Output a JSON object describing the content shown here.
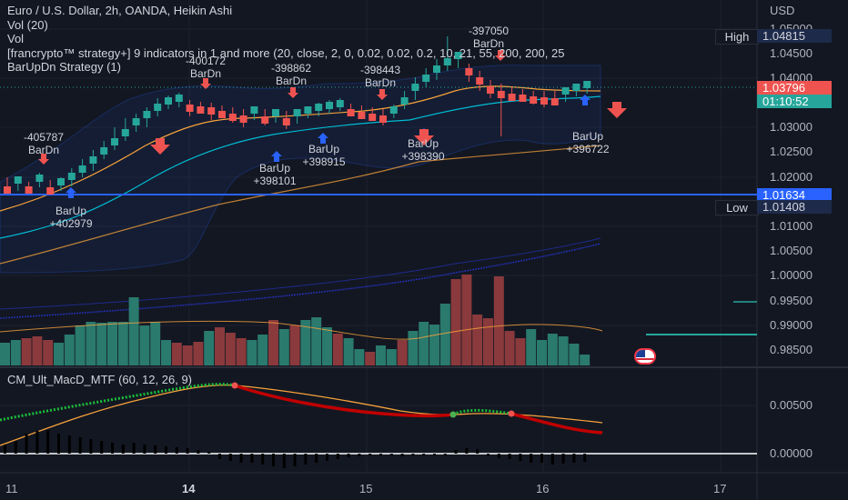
{
  "legend": {
    "title": "Euro / U.S. Dollar, 2h, OANDA, Heikin Ashi",
    "vol1": "Vol (20)",
    "vol2": "Vol",
    "strategy": "[francrypto™ strategy+] 9 indicators in 1 and more (20, close, 2, 0, 0.02, 0.02, 0.2, 10, 21, 55, 200, 200, 25",
    "barupdn": "BarUpDn Strategy (1)"
  },
  "macd_title": "CM_Ult_MacD_MTF (60, 12, 26, 9)",
  "price_axis": {
    "currency": "USD",
    "ticks": [
      "1.05000",
      "1.04500",
      "1.04000",
      "1.03000",
      "1.02500",
      "1.02000",
      "1.01000",
      "1.00500",
      "1.00000",
      "0.99500",
      "0.99000",
      "0.98500"
    ]
  },
  "macd_axis": {
    "ticks": [
      "0.00500",
      "0.00000"
    ]
  },
  "tags": {
    "high_label": "High",
    "high_value": "1.04815",
    "last_value": "1.03796",
    "countdown": "01:10:52",
    "line_value": "1.01634",
    "low_label": "Low",
    "low_value": "1.01408"
  },
  "time_axis": [
    "11",
    "14",
    "15",
    "16",
    "17"
  ],
  "annotations": [
    {
      "text": "-405787\nBarDn"
    },
    {
      "text": "-400172\nBarDn"
    },
    {
      "text": "-398862\nBarDn"
    },
    {
      "text": "-398443\nBarDn"
    },
    {
      "text": "-397050\nBarDn"
    },
    {
      "text": "BarUp\n+402979"
    },
    {
      "text": "BarUp\n+398101"
    },
    {
      "text": "BarUp\n+398915"
    },
    {
      "text": "BarUp\n+398390"
    },
    {
      "text": "BarUp\n+396722"
    }
  ],
  "colors": {
    "background": "#131722",
    "bull": "#26a69a",
    "bear": "#ef5350",
    "vol_bull": "#2a7a6e",
    "vol_bear": "#8a3a3c",
    "accent_blue": "#2962ff",
    "ema_orange": "#f7a23b",
    "cyan": "#00bcd4",
    "macd_green": "#4caf50",
    "macd_red": "#d00000"
  },
  "icons": {
    "flag": "us-flag-icon"
  }
}
